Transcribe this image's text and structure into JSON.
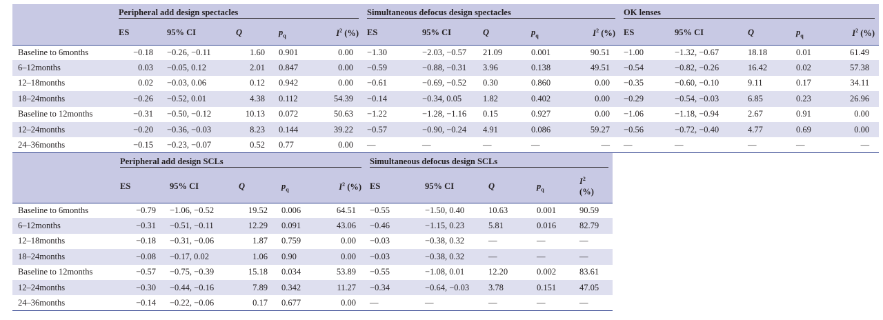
{
  "table1": {
    "groups": [
      "Peripheral add design spectacles",
      "Simultaneous defocus design spectacles",
      "OK lenses"
    ],
    "columns": [
      "ES",
      "95% CI",
      "Q",
      "pq",
      "I2 (%)"
    ],
    "rows": [
      {
        "label": "Baseline to 6months",
        "cells": [
          "−0.18",
          "−0.26, −0.11",
          "1.60",
          "0.901",
          "0.00",
          "−1.30",
          "−2.03, −0.57",
          "21.09",
          "0.001",
          "90.51",
          "−1.00",
          "−1.32, −0.67",
          "18.18",
          "0.01",
          "61.49"
        ]
      },
      {
        "label": "6–12months",
        "cells": [
          "0.03",
          "−0.05, 0.12",
          "2.01",
          "0.847",
          "0.00",
          "−0.59",
          "−0.88, −0.31",
          "3.96",
          "0.138",
          "49.51",
          "−0.54",
          "−0.82, −0.26",
          "16.42",
          "0.02",
          "57.38"
        ]
      },
      {
        "label": "12–18months",
        "cells": [
          "0.02",
          "−0.03, 0.06",
          "0.12",
          "0.942",
          "0.00",
          "−0.61",
          "−0.69, −0.52",
          "0.30",
          "0.860",
          "0.00",
          "−0.35",
          "−0.60, −0.10",
          "9.11",
          "0.17",
          "34.11"
        ]
      },
      {
        "label": "18–24months",
        "cells": [
          "−0.26",
          "−0.52, 0.01",
          "4.38",
          "0.112",
          "54.39",
          "−0.14",
          "−0.34, 0.05",
          "1.82",
          "0.402",
          "0.00",
          "−0.29",
          "−0.54, −0.03",
          "6.85",
          "0.23",
          "26.96"
        ]
      },
      {
        "label": "Baseline to 12months",
        "cells": [
          "−0.31",
          "−0.50, −0.12",
          "10.13",
          "0.072",
          "50.63",
          "−1.22",
          "−1.28, −1.16",
          "0.15",
          "0.927",
          "0.00",
          "−1.06",
          "−1.18, −0.94",
          "2.67",
          "0.91",
          "0.00"
        ]
      },
      {
        "label": "12–24months",
        "cells": [
          "−0.20",
          "−0.36, −0.03",
          "8.23",
          "0.144",
          "39.22",
          "−0.57",
          "−0.90, −0.24",
          "4.91",
          "0.086",
          "59.27",
          "−0.56",
          "−0.72, −0.40",
          "4.77",
          "0.69",
          "0.00"
        ]
      },
      {
        "label": "24–36months",
        "cells": [
          "−0.15",
          "−0.23, −0.07",
          "0.52",
          "0.77",
          "0.00",
          "—",
          "—",
          "—",
          "—",
          "—",
          "—",
          "—",
          "—",
          "—",
          "—"
        ]
      }
    ]
  },
  "table2": {
    "groups": [
      "Peripheral add design SCLs",
      "Simultaneous defocus design SCLs"
    ],
    "columns": [
      "ES",
      "95% CI",
      "Q",
      "pq",
      "I2 (%)"
    ],
    "rows": [
      {
        "label": "Baseline to 6months",
        "cells": [
          "−0.79",
          "−1.06, −0.52",
          "19.52",
          "0.006",
          "64.51",
          "−0.55",
          "−1.50, 0.40",
          "10.63",
          "0.001",
          "90.59"
        ]
      },
      {
        "label": "6–12months",
        "cells": [
          "−0.31",
          "−0.51, −0.11",
          "12.29",
          "0.091",
          "43.06",
          "−0.46",
          "−1.15, 0.23",
          "5.81",
          "0.016",
          "82.79"
        ]
      },
      {
        "label": "12–18months",
        "cells": [
          "−0.18",
          "−0.31, −0.06",
          "1.87",
          "0.759",
          "0.00",
          "−0.03",
          "−0.38, 0.32",
          "—",
          "—",
          "—"
        ]
      },
      {
        "label": "18–24months",
        "cells": [
          "−0.08",
          "−0.17, 0.02",
          "1.06",
          "0.90",
          "0.00",
          "−0.03",
          "−0.38, 0.32",
          "—",
          "—",
          "—"
        ]
      },
      {
        "label": "Baseline to 12months",
        "cells": [
          "−0.57",
          "−0.75, −0.39",
          "15.18",
          "0.034",
          "53.89",
          "−0.55",
          "−1.08, 0.01",
          "12.20",
          "0.002",
          "83.61"
        ]
      },
      {
        "label": "12–24months",
        "cells": [
          "−0.30",
          "−0.44, −0.16",
          "7.89",
          "0.342",
          "11.27",
          "−0.34",
          "−0.64, −0.03",
          "3.78",
          "0.151",
          "47.05"
        ]
      },
      {
        "label": "24–36months",
        "cells": [
          "−0.14",
          "−0.22, −0.06",
          "0.17",
          "0.677",
          "0.00",
          "—",
          "—",
          "—",
          "—",
          "—"
        ]
      }
    ]
  }
}
